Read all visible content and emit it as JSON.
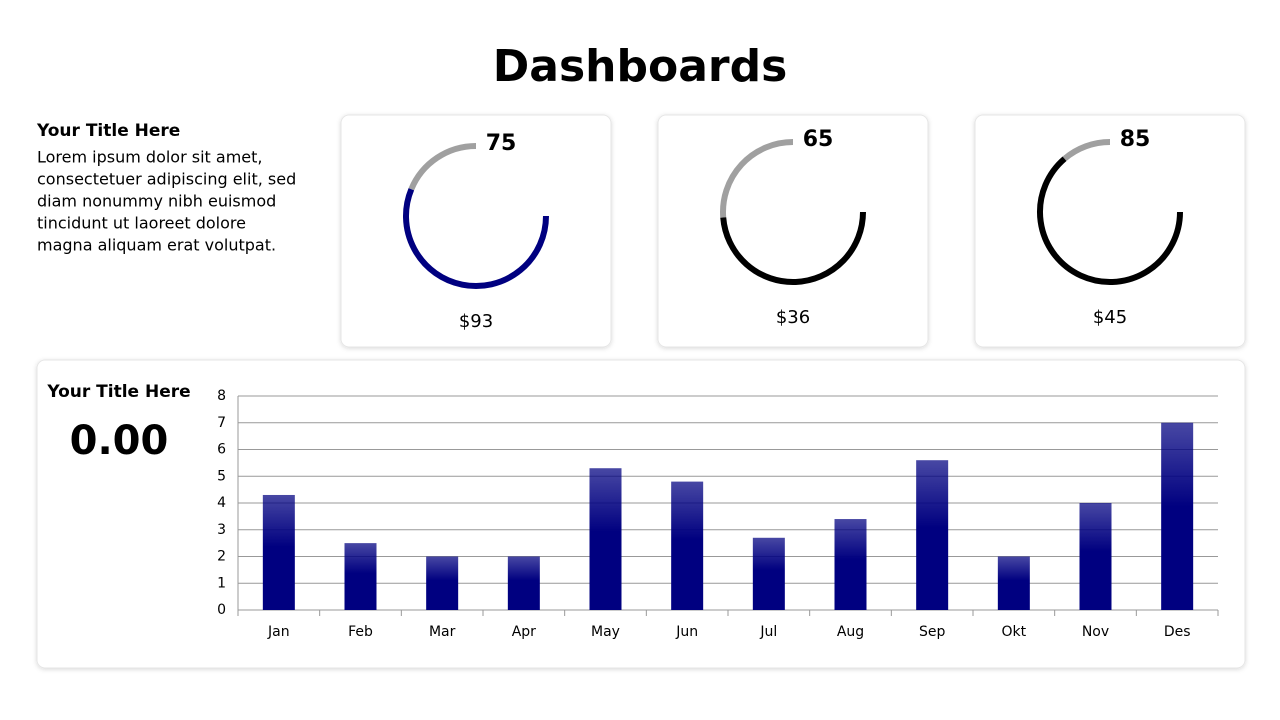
{
  "title": "Dashboards",
  "intro": {
    "title": "Your Title Here",
    "lines": [
      "Lorem ipsum dolor sit amet,",
      "consectetuer adipiscing elit, sed",
      "diam nonummy nibh euismod",
      "tincidunt ut laoreet dolore",
      "magna aliquam erat volutpat."
    ]
  },
  "summary": {
    "title": "Your Title Here",
    "value": "0.00"
  },
  "chart_data": [
    {
      "type": "gauge",
      "value": 75,
      "ylim": [
        0,
        100
      ],
      "caption": "$93",
      "color": "#000080",
      "track_color": "#a0a0a0"
    },
    {
      "type": "gauge",
      "value": 65,
      "ylim": [
        0,
        100
      ],
      "caption": "$36",
      "color": "#000000",
      "track_color": "#a0a0a0"
    },
    {
      "type": "gauge",
      "value": 85,
      "ylim": [
        0,
        100
      ],
      "caption": "$45",
      "color": "#000000",
      "track_color": "#a0a0a0"
    },
    {
      "type": "bar",
      "categories": [
        "Jan",
        "Feb",
        "Mar",
        "Apr",
        "May",
        "Jun",
        "Jul",
        "Aug",
        "Sep",
        "Okt",
        "Nov",
        "Des"
      ],
      "values": [
        4.3,
        2.5,
        2,
        2,
        5.3,
        4.8,
        2.7,
        3.4,
        5.6,
        2,
        4,
        7
      ],
      "color": "#000080",
      "ylim": [
        0,
        8
      ],
      "yticks": [
        0,
        1,
        2,
        3,
        4,
        5,
        6,
        7,
        8
      ],
      "grid": true
    }
  ]
}
